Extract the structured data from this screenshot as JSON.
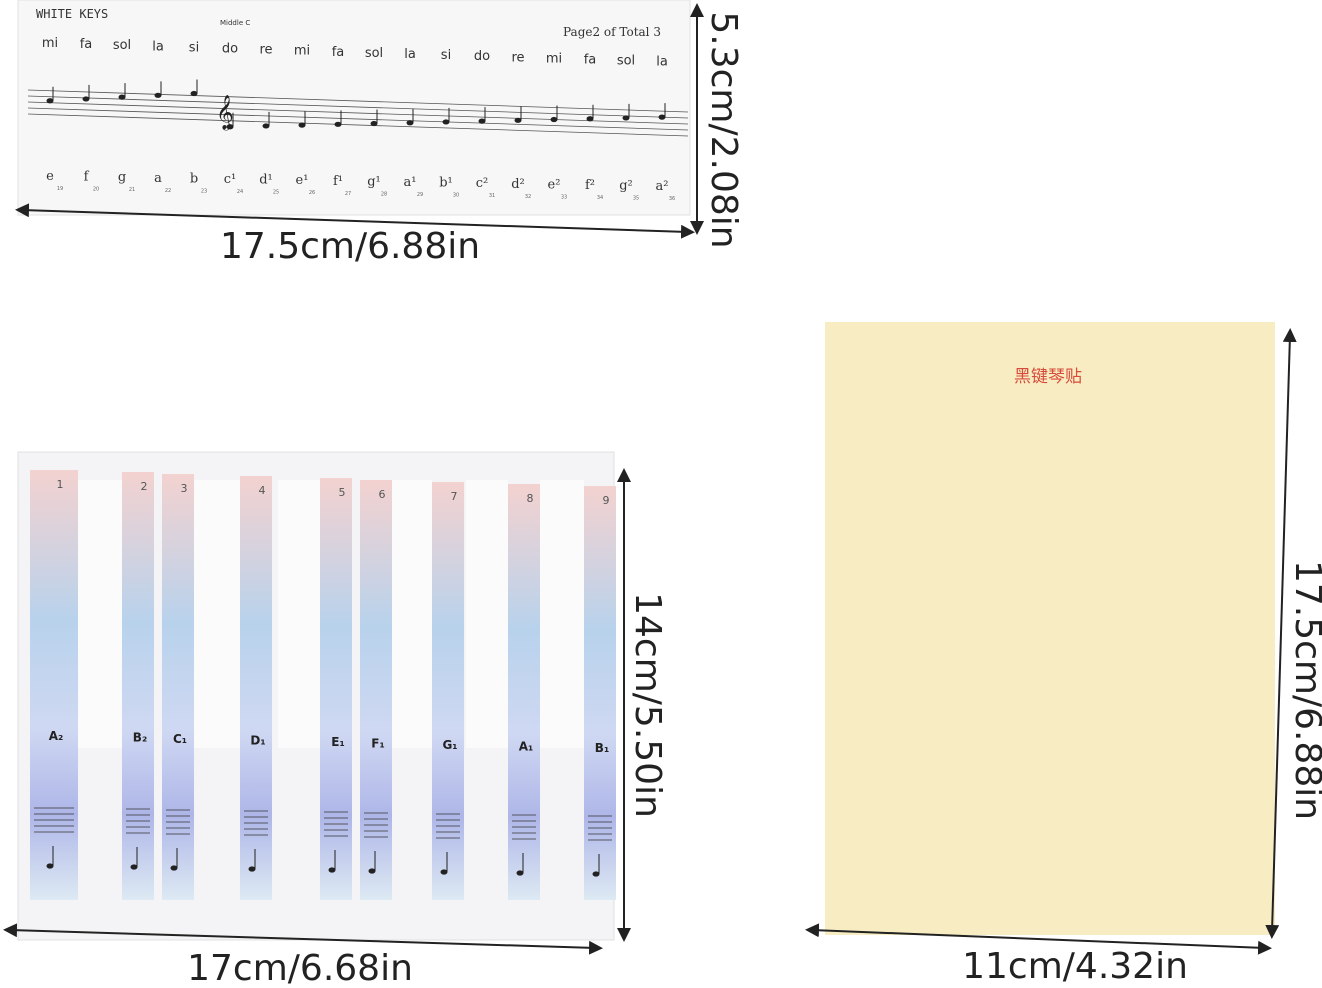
{
  "top_sheet": {
    "title": "WHITE KEYS",
    "middle_c": "Middle C",
    "page": "Page2 of Total 3",
    "solfege": [
      "mi",
      "fa",
      "sol",
      "la",
      "si",
      "do",
      "re",
      "mi",
      "fa",
      "sol",
      "la",
      "si",
      "do",
      "re",
      "mi",
      "fa",
      "sol",
      "la"
    ],
    "notes": [
      "e",
      "f",
      "g",
      "a",
      "b",
      "c¹",
      "d¹",
      "e¹",
      "f¹",
      "g¹",
      "a¹",
      "b¹",
      "c²",
      "d²",
      "e²",
      "f²",
      "g²",
      "a²"
    ],
    "numbers": [
      19,
      20,
      21,
      22,
      23,
      24,
      25,
      26,
      27,
      28,
      29,
      30,
      31,
      32,
      33,
      34,
      35,
      36
    ]
  },
  "bottom_left_sheet": {
    "key_numbers": [
      1,
      2,
      3,
      4,
      5,
      6,
      7,
      8,
      9
    ],
    "key_labels": [
      "A₂",
      "B₂",
      "C₁",
      "D₁",
      "E₁",
      "F₁",
      "G₁",
      "A₁",
      "B₁"
    ]
  },
  "right_sheet": {
    "title": "黑键琴贴"
  },
  "dimensions": {
    "top_height": "5.3cm/2.08in",
    "top_width": "17.5cm/6.88in",
    "left_height": "14cm/5.50in",
    "left_width": "17cm/6.68in",
    "right_height": "17.5cm/6.88in",
    "right_width": "11cm/4.32in"
  }
}
